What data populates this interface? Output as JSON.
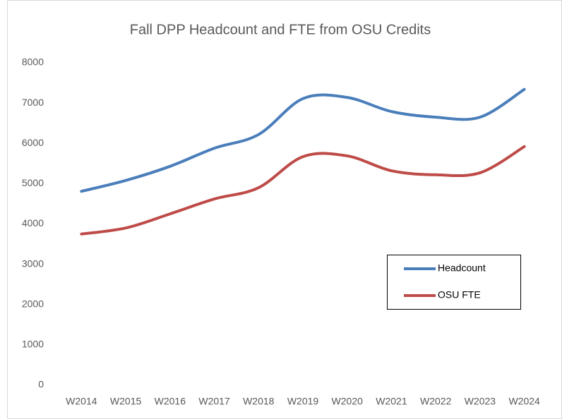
{
  "chart_data": {
    "type": "line",
    "title": "Fall DPP Headcount and FTE from OSU Credits",
    "categories": [
      "W2014",
      "W2015",
      "W2016",
      "W2017",
      "W2018",
      "W2019",
      "W2020",
      "W2021",
      "W2022",
      "W2023",
      "W2024"
    ],
    "series": [
      {
        "name": "Headcount",
        "color": "#4a7ebb",
        "values": [
          4810,
          5080,
          5430,
          5880,
          6220,
          7110,
          7140,
          6790,
          6650,
          6650,
          7340
        ]
      },
      {
        "name": "OSU FTE",
        "color": "#be4b48",
        "values": [
          3750,
          3900,
          4250,
          4620,
          4900,
          5670,
          5690,
          5320,
          5220,
          5270,
          5920
        ]
      }
    ],
    "ylim": [
      0,
      8000
    ],
    "yticks": [
      0,
      1000,
      2000,
      3000,
      4000,
      5000,
      6000,
      7000,
      8000
    ],
    "grid": false,
    "legend": "right",
    "smooth": true
  }
}
